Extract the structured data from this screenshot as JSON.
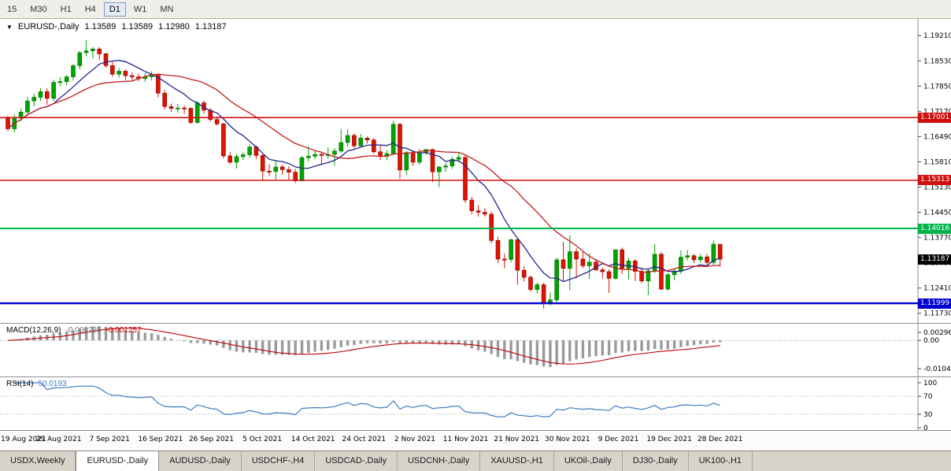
{
  "toolbar": {
    "timeframes": [
      "15",
      "M30",
      "H1",
      "H4",
      "D1",
      "W1",
      "MN"
    ],
    "active": "D1"
  },
  "main_chart": {
    "header": {
      "dropdown_icon": "▼",
      "symbol": "EURUSD-,Daily",
      "open": "1.13589",
      "high": "1.13589",
      "low": "1.12980",
      "close": "1.13187"
    },
    "price_axis_ticks": [
      "1.19210",
      "1.18530",
      "1.17850",
      "1.17170",
      "1.16490",
      "1.15810",
      "1.15130",
      "1.14450",
      "1.13770",
      "1.13090",
      "1.12410",
      "1.11730"
    ],
    "current_price": "1.13187",
    "hlines": [
      {
        "price": 1.17001,
        "label": "1.17001",
        "color": "#d01010",
        "width": 1.6
      },
      {
        "price": 1.15313,
        "label": "1.15313",
        "color": "#d01010",
        "width": 1.6
      },
      {
        "price": 1.14016,
        "label": "1.14016",
        "color": "#00b44a",
        "width": 2
      },
      {
        "price": 1.11999,
        "label": "1.11999",
        "color": "#0000d0",
        "width": 2.4
      }
    ]
  },
  "macd_panel": {
    "name": "MACD(12,26,9)",
    "value_main": "-0.000225",
    "value_signal": "-0.001257",
    "axis_ticks": [
      "0.002966",
      "0.00",
      "-0.01042"
    ],
    "params": {
      "fast": 12,
      "slow": 26,
      "signal": 9
    }
  },
  "rsi_panel": {
    "name": "RSI(14)",
    "value": "50.0193",
    "period": 14,
    "axis_ticks": [
      "100",
      "70",
      "30",
      "0"
    ],
    "levels": [
      70,
      30
    ]
  },
  "date_axis": [
    "19 Aug 2021",
    "29 Aug 2021",
    "7 Sep 2021",
    "16 Sep 2021",
    "26 Sep 2021",
    "5 Oct 2021",
    "14 Oct 2021",
    "24 Oct 2021",
    "2 Nov 2021",
    "11 Nov 2021",
    "21 Nov 2021",
    "30 Nov 2021",
    "9 Dec 2021",
    "19 Dec 2021",
    "28 Dec 2021"
  ],
  "tabs": [
    {
      "label": "USDX,Weekly",
      "active": false
    },
    {
      "label": "EURUSD-,Daily",
      "active": true
    },
    {
      "label": "AUDUSD-,Daily",
      "active": false
    },
    {
      "label": "USDCHF-,H4",
      "active": false
    },
    {
      "label": "USDCAD-,Daily",
      "active": false
    },
    {
      "label": "USDCNH-,Daily",
      "active": false
    },
    {
      "label": "XAUUSD-,H1",
      "active": false
    },
    {
      "label": "UKOil-,Daily",
      "active": false
    },
    {
      "label": "DJ30-,Daily",
      "active": false
    },
    {
      "label": "UK100-,H1",
      "active": false
    }
  ],
  "chart_data": {
    "type": "candlestick",
    "title": "EURUSD-,Daily",
    "y_range": {
      "top": 1.1966,
      "bottom": 1.1147
    },
    "macd_range": {
      "max": 0.002966,
      "min": -0.01042
    },
    "last_price": 1.13187,
    "levels": [
      1.17001,
      1.15313,
      1.14016,
      1.11999
    ],
    "moving_averages": [
      {
        "period": 8,
        "color": "#24248f"
      },
      {
        "period": 20,
        "color": "#c41e1e"
      }
    ],
    "x_labels": [
      "19 Aug 2021",
      "29 Aug 2021",
      "7 Sep 2021",
      "16 Sep 2021",
      "26 Sep 2021",
      "5 Oct 2021",
      "14 Oct 2021",
      "24 Oct 2021",
      "2 Nov 2021",
      "11 Nov 2021",
      "21 Nov 2021",
      "30 Nov 2021",
      "9 Dec 2021",
      "19 Dec 2021",
      "28 Dec 2021"
    ],
    "ohlc": [
      [
        1.1698,
        1.1705,
        1.1664,
        1.167
      ],
      [
        1.167,
        1.1709,
        1.166,
        1.17
      ],
      [
        1.17,
        1.1725,
        1.169,
        1.1715
      ],
      [
        1.1715,
        1.1755,
        1.1705,
        1.1745
      ],
      [
        1.1745,
        1.1765,
        1.173,
        1.1755
      ],
      [
        1.1755,
        1.178,
        1.1745,
        1.177
      ],
      [
        1.177,
        1.1779,
        1.1735,
        1.1752
      ],
      [
        1.1752,
        1.1802,
        1.1745,
        1.1795
      ],
      [
        1.1795,
        1.1809,
        1.1785,
        1.1797
      ],
      [
        1.1797,
        1.1815,
        1.1787,
        1.181
      ],
      [
        1.181,
        1.1845,
        1.18,
        1.184
      ],
      [
        1.184,
        1.188,
        1.183,
        1.1875
      ],
      [
        1.1875,
        1.1909,
        1.1865,
        1.188
      ],
      [
        1.188,
        1.189,
        1.186,
        1.1885
      ],
      [
        1.1885,
        1.189,
        1.1855,
        1.1872
      ],
      [
        1.1872,
        1.1875,
        1.1835,
        1.184
      ],
      [
        1.184,
        1.185,
        1.181,
        1.1817
      ],
      [
        1.1817,
        1.1833,
        1.1808,
        1.1825
      ],
      [
        1.1825,
        1.183,
        1.1802,
        1.1813
      ],
      [
        1.1813,
        1.1822,
        1.18,
        1.181
      ],
      [
        1.181,
        1.1818,
        1.1798,
        1.1805
      ],
      [
        1.1805,
        1.182,
        1.1796,
        1.181
      ],
      [
        1.181,
        1.1825,
        1.18,
        1.1817
      ],
      [
        1.1817,
        1.182,
        1.1755,
        1.1766
      ],
      [
        1.1766,
        1.1775,
        1.1722,
        1.173
      ],
      [
        1.173,
        1.1738,
        1.1715,
        1.1725
      ],
      [
        1.1725,
        1.1737,
        1.1713,
        1.1726
      ],
      [
        1.1726,
        1.1733,
        1.171,
        1.1725
      ],
      [
        1.1725,
        1.1728,
        1.1683,
        1.1687
      ],
      [
        1.1687,
        1.1745,
        1.1684,
        1.174
      ],
      [
        1.174,
        1.1746,
        1.171,
        1.172
      ],
      [
        1.172,
        1.1726,
        1.1689,
        1.1695
      ],
      [
        1.1695,
        1.1703,
        1.1679,
        1.1683
      ],
      [
        1.1683,
        1.1686,
        1.159,
        1.1597
      ],
      [
        1.1597,
        1.1608,
        1.1575,
        1.158
      ],
      [
        1.158,
        1.1603,
        1.1563,
        1.1595
      ],
      [
        1.1595,
        1.1607,
        1.1586,
        1.16
      ],
      [
        1.16,
        1.1628,
        1.1592,
        1.1621
      ],
      [
        1.1621,
        1.1625,
        1.1588,
        1.1598
      ],
      [
        1.1598,
        1.1601,
        1.1529,
        1.1556
      ],
      [
        1.1556,
        1.1574,
        1.1543,
        1.1555
      ],
      [
        1.1555,
        1.1586,
        1.1533,
        1.1567
      ],
      [
        1.1567,
        1.1573,
        1.1546,
        1.156
      ],
      [
        1.156,
        1.1569,
        1.1532,
        1.1553
      ],
      [
        1.1553,
        1.1562,
        1.1524,
        1.153
      ],
      [
        1.153,
        1.1597,
        1.1528,
        1.1592
      ],
      [
        1.1592,
        1.1624,
        1.1582,
        1.1596
      ],
      [
        1.1596,
        1.161,
        1.1588,
        1.1601
      ],
      [
        1.1601,
        1.1608,
        1.1572,
        1.1598
      ],
      [
        1.1598,
        1.162,
        1.159,
        1.1601
      ],
      [
        1.1601,
        1.1618,
        1.1571,
        1.161
      ],
      [
        1.161,
        1.167,
        1.1605,
        1.1633
      ],
      [
        1.1633,
        1.1669,
        1.1622,
        1.1652
      ],
      [
        1.1652,
        1.1657,
        1.1617,
        1.1624
      ],
      [
        1.1624,
        1.1656,
        1.162,
        1.1645
      ],
      [
        1.1645,
        1.1649,
        1.163,
        1.164
      ],
      [
        1.164,
        1.1645,
        1.1603,
        1.1608
      ],
      [
        1.1608,
        1.1625,
        1.1586,
        1.1596
      ],
      [
        1.1596,
        1.1612,
        1.1585,
        1.1603
      ],
      [
        1.1603,
        1.1692,
        1.1598,
        1.1682
      ],
      [
        1.1682,
        1.1686,
        1.1535,
        1.1559
      ],
      [
        1.1559,
        1.161,
        1.1545,
        1.1606
      ],
      [
        1.1606,
        1.1612,
        1.157,
        1.158
      ],
      [
        1.158,
        1.1616,
        1.1573,
        1.1605
      ],
      [
        1.1605,
        1.1616,
        1.16,
        1.1614
      ],
      [
        1.1614,
        1.1617,
        1.1527,
        1.1554
      ],
      [
        1.1554,
        1.157,
        1.1513,
        1.1567
      ],
      [
        1.1567,
        1.1578,
        1.1554,
        1.157
      ],
      [
        1.157,
        1.1594,
        1.1562,
        1.1588
      ],
      [
        1.1588,
        1.1608,
        1.158,
        1.1593
      ],
      [
        1.1593,
        1.1598,
        1.147,
        1.1478
      ],
      [
        1.1478,
        1.1486,
        1.144,
        1.1449
      ],
      [
        1.1449,
        1.1464,
        1.1433,
        1.1445
      ],
      [
        1.1445,
        1.1456,
        1.1433,
        1.144
      ],
      [
        1.144,
        1.1447,
        1.1361,
        1.1369
      ],
      [
        1.1369,
        1.1379,
        1.1309,
        1.1319
      ],
      [
        1.1319,
        1.1334,
        1.1294,
        1.1318
      ],
      [
        1.1318,
        1.1374,
        1.131,
        1.1371
      ],
      [
        1.1371,
        1.1374,
        1.125,
        1.1289
      ],
      [
        1.1289,
        1.1299,
        1.1259,
        1.127
      ],
      [
        1.127,
        1.1275,
        1.1231,
        1.1237
      ],
      [
        1.1237,
        1.1255,
        1.1226,
        1.125
      ],
      [
        1.125,
        1.1255,
        1.1186,
        1.1199
      ],
      [
        1.1199,
        1.1229,
        1.1194,
        1.1209
      ],
      [
        1.1209,
        1.1323,
        1.1203,
        1.1317
      ],
      [
        1.1317,
        1.1365,
        1.1258,
        1.1294
      ],
      [
        1.1294,
        1.1383,
        1.1235,
        1.1339
      ],
      [
        1.1339,
        1.1348,
        1.1267,
        1.1319
      ],
      [
        1.1319,
        1.1339,
        1.1294,
        1.1301
      ],
      [
        1.1301,
        1.1334,
        1.1266,
        1.1311
      ],
      [
        1.1311,
        1.1319,
        1.1287,
        1.129
      ],
      [
        1.129,
        1.1297,
        1.1267,
        1.1285
      ],
      [
        1.1285,
        1.1292,
        1.1228,
        1.1267
      ],
      [
        1.1267,
        1.1345,
        1.1264,
        1.1344
      ],
      [
        1.1344,
        1.135,
        1.1279,
        1.1294
      ],
      [
        1.1294,
        1.1323,
        1.1265,
        1.1314
      ],
      [
        1.1314,
        1.1319,
        1.126,
        1.1286
      ],
      [
        1.1286,
        1.1297,
        1.1254,
        1.126
      ],
      [
        1.126,
        1.1292,
        1.1222,
        1.1287
      ],
      [
        1.1287,
        1.136,
        1.1281,
        1.1332
      ],
      [
        1.1332,
        1.1338,
        1.1236,
        1.1238
      ],
      [
        1.1238,
        1.1281,
        1.1235,
        1.1277
      ],
      [
        1.1277,
        1.1293,
        1.1262,
        1.1287
      ],
      [
        1.1287,
        1.1342,
        1.1279,
        1.1324
      ],
      [
        1.1324,
        1.1343,
        1.1315,
        1.1328
      ],
      [
        1.1328,
        1.1333,
        1.1308,
        1.1317
      ],
      [
        1.1317,
        1.1333,
        1.1309,
        1.1325
      ],
      [
        1.1325,
        1.1333,
        1.1303,
        1.131
      ],
      [
        1.131,
        1.1369,
        1.1304,
        1.1359
      ],
      [
        1.13589,
        1.13589,
        1.1298,
        1.13187
      ]
    ]
  }
}
